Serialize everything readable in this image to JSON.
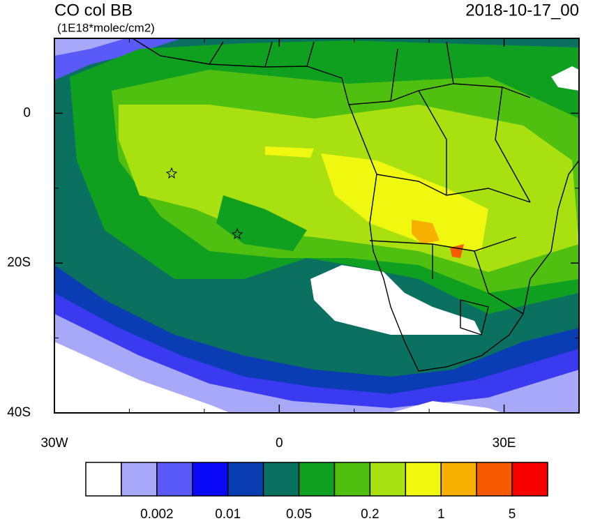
{
  "title": "CO col BB",
  "units": "(1E18*molec/cm2)",
  "date": "2018-10-17_00",
  "map": {
    "xlim": [
      -30,
      40
    ],
    "ylim": [
      -40,
      10
    ],
    "xticks": [
      {
        "value": -30,
        "label": "30W"
      },
      0,
      {
        "value": 30,
        "label": "30E"
      }
    ],
    "yticks": [
      0,
      {
        "value": -20,
        "label": "20S"
      },
      {
        "value": -40,
        "label": "40S"
      }
    ]
  },
  "colorbar": {
    "colors": [
      "#ffffff",
      "#a8a8f8",
      "#5a5af8",
      "#0a0af8",
      "#0a3cb4",
      "#0a7060",
      "#10a020",
      "#50c010",
      "#a8e010",
      "#f0f810",
      "#f8b000",
      "#f85a00",
      "#f80000"
    ],
    "labels": [
      0.002,
      0.01,
      0.05,
      0.2,
      1,
      5
    ]
  }
}
